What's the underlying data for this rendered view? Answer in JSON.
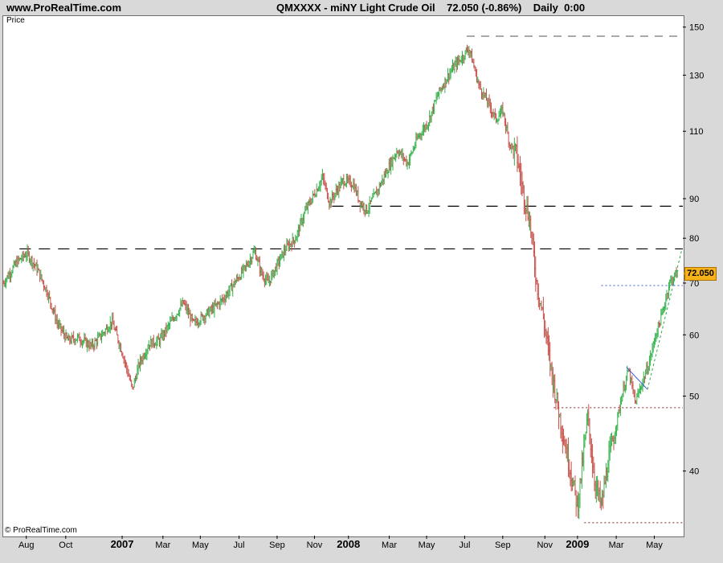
{
  "header": {
    "site": "www.ProRealTime.com",
    "symbol_line": "QMXXXX - miNY Light Crude Oil    72.050 (-0.86%)    Daily  0:00"
  },
  "price_label": "Price",
  "copyright": "© ProRealTime.com",
  "last_price_label": "72.050",
  "chart_data": {
    "type": "candlestick",
    "y_scale": "log",
    "ylim": [
      33,
      155
    ],
    "y_ticks": [
      40,
      50,
      60,
      70,
      80,
      90,
      110,
      130,
      150
    ],
    "x_ticks": [
      {
        "label": "Aug",
        "t": 0.034,
        "bold": false
      },
      {
        "label": "Oct",
        "t": 0.092,
        "bold": false
      },
      {
        "label": "2007",
        "t": 0.175,
        "bold": true
      },
      {
        "label": "Mar",
        "t": 0.235,
        "bold": false
      },
      {
        "label": "May",
        "t": 0.29,
        "bold": false
      },
      {
        "label": "Jul",
        "t": 0.347,
        "bold": false
      },
      {
        "label": "Sep",
        "t": 0.403,
        "bold": false
      },
      {
        "label": "Nov",
        "t": 0.458,
        "bold": false
      },
      {
        "label": "2008",
        "t": 0.508,
        "bold": true
      },
      {
        "label": "Mar",
        "t": 0.568,
        "bold": false
      },
      {
        "label": "May",
        "t": 0.623,
        "bold": false
      },
      {
        "label": "Jul",
        "t": 0.679,
        "bold": false
      },
      {
        "label": "Sep",
        "t": 0.735,
        "bold": false
      },
      {
        "label": "Nov",
        "t": 0.797,
        "bold": false
      },
      {
        "label": "2009",
        "t": 0.845,
        "bold": true
      },
      {
        "label": "Mar",
        "t": 0.902,
        "bold": false
      },
      {
        "label": "May",
        "t": 0.958,
        "bold": false
      }
    ],
    "price_path": [
      [
        0.0,
        70
      ],
      [
        0.02,
        74.5
      ],
      [
        0.035,
        76.5
      ],
      [
        0.05,
        73
      ],
      [
        0.065,
        68
      ],
      [
        0.08,
        62
      ],
      [
        0.095,
        59
      ],
      [
        0.11,
        59.5
      ],
      [
        0.13,
        58
      ],
      [
        0.145,
        60
      ],
      [
        0.16,
        62.5
      ],
      [
        0.175,
        57
      ],
      [
        0.19,
        51
      ],
      [
        0.2,
        55
      ],
      [
        0.215,
        58.5
      ],
      [
        0.23,
        59
      ],
      [
        0.25,
        63
      ],
      [
        0.265,
        66
      ],
      [
        0.28,
        62
      ],
      [
        0.295,
        63.5
      ],
      [
        0.31,
        65
      ],
      [
        0.325,
        67
      ],
      [
        0.34,
        70
      ],
      [
        0.355,
        73
      ],
      [
        0.37,
        77
      ],
      [
        0.38,
        72
      ],
      [
        0.39,
        70
      ],
      [
        0.4,
        73
      ],
      [
        0.415,
        77.5
      ],
      [
        0.43,
        80
      ],
      [
        0.445,
        87
      ],
      [
        0.46,
        92
      ],
      [
        0.47,
        96
      ],
      [
        0.48,
        89
      ],
      [
        0.49,
        92
      ],
      [
        0.5,
        95
      ],
      [
        0.515,
        94
      ],
      [
        0.525,
        89
      ],
      [
        0.535,
        87
      ],
      [
        0.55,
        92
      ],
      [
        0.565,
        98
      ],
      [
        0.58,
        104
      ],
      [
        0.595,
        100
      ],
      [
        0.61,
        108
      ],
      [
        0.625,
        113
      ],
      [
        0.64,
        123
      ],
      [
        0.655,
        130
      ],
      [
        0.665,
        134
      ],
      [
        0.675,
        137
      ],
      [
        0.685,
        141
      ],
      [
        0.69,
        136
      ],
      [
        0.7,
        126
      ],
      [
        0.715,
        119
      ],
      [
        0.725,
        114
      ],
      [
        0.735,
        117
      ],
      [
        0.745,
        106
      ],
      [
        0.755,
        103
      ],
      [
        0.765,
        92
      ],
      [
        0.775,
        84
      ],
      [
        0.785,
        70
      ],
      [
        0.795,
        63
      ],
      [
        0.805,
        55
      ],
      [
        0.815,
        49
      ],
      [
        0.825,
        44
      ],
      [
        0.835,
        40
      ],
      [
        0.845,
        36
      ],
      [
        0.855,
        43
      ],
      [
        0.86,
        47
      ],
      [
        0.87,
        39
      ],
      [
        0.88,
        36
      ],
      [
        0.89,
        41
      ],
      [
        0.9,
        45
      ],
      [
        0.91,
        50
      ],
      [
        0.92,
        54
      ],
      [
        0.93,
        49
      ],
      [
        0.94,
        52
      ],
      [
        0.95,
        55
      ],
      [
        0.96,
        60
      ],
      [
        0.97,
        64
      ],
      [
        0.98,
        70
      ],
      [
        0.99,
        72
      ]
    ],
    "hlines": [
      {
        "y": 146,
        "t0": 0.682,
        "t1": 1.0,
        "style": "dash-long-thin"
      },
      {
        "y": 88,
        "t0": 0.484,
        "t1": 1.0,
        "style": "dash-long"
      },
      {
        "y": 77.5,
        "t0": 0.024,
        "t1": 1.0,
        "style": "dash-long"
      },
      {
        "y": 48.3,
        "t0": 0.81,
        "t1": 1.0,
        "style": "dot"
      },
      {
        "y": 34.3,
        "t0": 0.855,
        "t1": 1.0,
        "style": "dot"
      },
      {
        "y": 69.5,
        "t0": 0.88,
        "t1": 1.0,
        "style": "dot-blue"
      }
    ],
    "trendlines": [
      {
        "points": [
          [
            0.917,
            54.5
          ],
          [
            0.948,
            51
          ]
        ],
        "color": "#3b5bd6"
      },
      {
        "points": [
          [
            0.948,
            51
          ],
          [
            0.998,
            77
          ]
        ],
        "color": "#2aa84a"
      }
    ],
    "last_price": 72.05
  }
}
